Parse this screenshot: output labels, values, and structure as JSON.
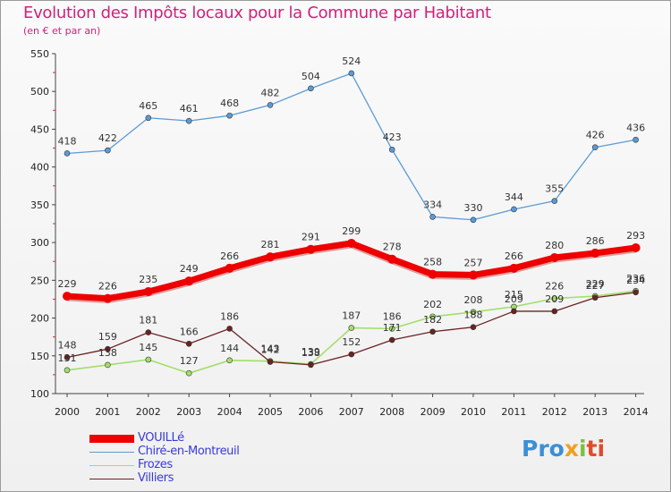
{
  "title": "Evolution des Impôts locaux pour la Commune par Habitant",
  "subtitle": "(en € et par an)",
  "chart_data": {
    "type": "line",
    "x": [
      2000,
      2001,
      2002,
      2003,
      2004,
      2005,
      2006,
      2007,
      2008,
      2009,
      2010,
      2011,
      2012,
      2013,
      2014
    ],
    "ylim": [
      100,
      550
    ],
    "yticks": [
      100,
      150,
      200,
      250,
      300,
      350,
      400,
      450,
      500,
      550
    ],
    "grid": false,
    "legend_position": "bottom-left",
    "series": [
      {
        "name": "VOUILLé",
        "color": "#ee0000",
        "values": [
          229,
          226,
          235,
          249,
          266,
          281,
          291,
          299,
          278,
          258,
          257,
          266,
          280,
          286,
          293
        ]
      },
      {
        "name": "Chiré-en-Montreuil",
        "color": "#5b9bd5",
        "values": [
          418,
          422,
          465,
          461,
          468,
          482,
          504,
          524,
          423,
          334,
          330,
          344,
          355,
          426,
          436
        ]
      },
      {
        "name": "Frozes",
        "color": "#a3de6a",
        "values": [
          131,
          138,
          145,
          127,
          144,
          143,
          139,
          187,
          186,
          202,
          208,
          215,
          226,
          229,
          236
        ]
      },
      {
        "name": "Villiers",
        "color": "#6b2222",
        "values": [
          148,
          159,
          181,
          166,
          186,
          142,
          138,
          152,
          171,
          182,
          188,
          209,
          209,
          227,
          234
        ]
      }
    ]
  },
  "logo": {
    "p1": "Pro",
    "p2": "x",
    "p3": "i",
    "p4": "ti"
  }
}
